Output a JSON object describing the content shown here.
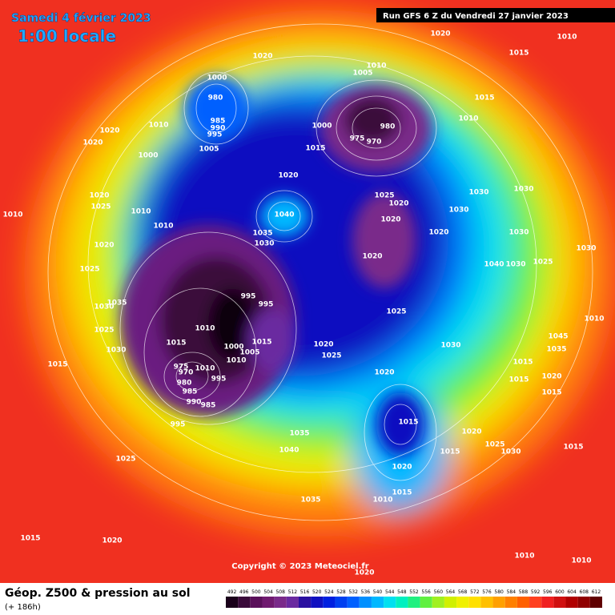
{
  "header": {
    "date": "Samedi 4 février 2023",
    "time": "1:00 locale",
    "run": "Run GFS 6 Z du Vendredi 27 janvier 2023"
  },
  "copyright": "Copyright © 2023 Meteociel.fr",
  "footer": {
    "title": "Géop. Z500 & pression au sol",
    "lead": "(+ 186h)"
  },
  "scale": {
    "values": [
      492,
      496,
      500,
      504,
      508,
      512,
      516,
      520,
      524,
      528,
      532,
      536,
      540,
      544,
      548,
      552,
      556,
      560,
      564,
      568,
      572,
      576,
      580,
      584,
      588,
      592,
      596,
      600,
      604,
      608,
      612
    ],
    "colors": [
      "#1a001a",
      "#3a0a3a",
      "#5a105a",
      "#701a70",
      "#7a2a8a",
      "#6a2aa0",
      "#2a10a0",
      "#1010c0",
      "#0020e0",
      "#0040f0",
      "#0060ff",
      "#0090ff",
      "#00b8ff",
      "#00e0f0",
      "#00f0c0",
      "#20f080",
      "#60f040",
      "#a0f020",
      "#d0f000",
      "#f0f000",
      "#ffe000",
      "#ffc000",
      "#ffa000",
      "#ff8000",
      "#ff6000",
      "#ff4020",
      "#f02020",
      "#d01010",
      "#b00000",
      "#900000",
      "#600000"
    ]
  },
  "isobar_labels": [
    1020,
    1010,
    1015,
    1020,
    1010,
    1005,
    1000,
    980,
    985,
    990,
    995,
    1010,
    1020,
    1020,
    1005,
    1000,
    1015,
    1010,
    980,
    975,
    970,
    1000,
    1015,
    1020,
    1025,
    1020,
    1030,
    1030,
    1040,
    1035,
    1030,
    1020,
    1020,
    1030,
    1020,
    1025,
    1030,
    1025,
    1010,
    1020,
    1025,
    1010,
    1010,
    1020,
    1025,
    1035,
    1030,
    1025,
    1030,
    1015,
    1010,
    995,
    995,
    1000,
    1005,
    1010,
    1015,
    975,
    970,
    980,
    985,
    990,
    985,
    995,
    1010,
    995,
    1020,
    1025,
    1020,
    1030,
    1015,
    1035,
    1040,
    1025,
    1015,
    1015,
    1020,
    1025,
    1030,
    1015,
    1020,
    1010,
    1015,
    1035,
    1015,
    1020,
    1010,
    1010,
    1020,
    1045,
    1035,
    1015,
    1015,
    1020,
    1015,
    1030,
    1010,
    1040,
    1030
  ]
}
